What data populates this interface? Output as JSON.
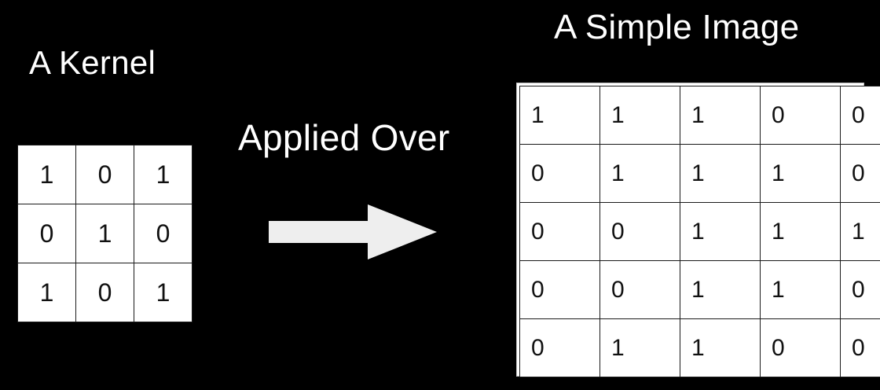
{
  "kernel": {
    "title": "A Kernel",
    "grid": [
      [
        "1",
        "0",
        "1"
      ],
      [
        "0",
        "1",
        "0"
      ],
      [
        "1",
        "0",
        "1"
      ]
    ]
  },
  "operation": {
    "label": "Applied Over",
    "arrow_icon": "right-arrow-icon",
    "arrow_color": "#eeeeee"
  },
  "image": {
    "title": "A Simple Image",
    "grid": [
      [
        "1",
        "1",
        "1",
        "0",
        "0"
      ],
      [
        "0",
        "1",
        "1",
        "1",
        "0"
      ],
      [
        "0",
        "0",
        "1",
        "1",
        "1"
      ],
      [
        "0",
        "0",
        "1",
        "1",
        "0"
      ],
      [
        "0",
        "1",
        "1",
        "0",
        "0"
      ]
    ]
  },
  "colors": {
    "background": "#000000",
    "text": "#ffffff",
    "cell_background": "#ffffff",
    "cell_text": "#111111"
  }
}
